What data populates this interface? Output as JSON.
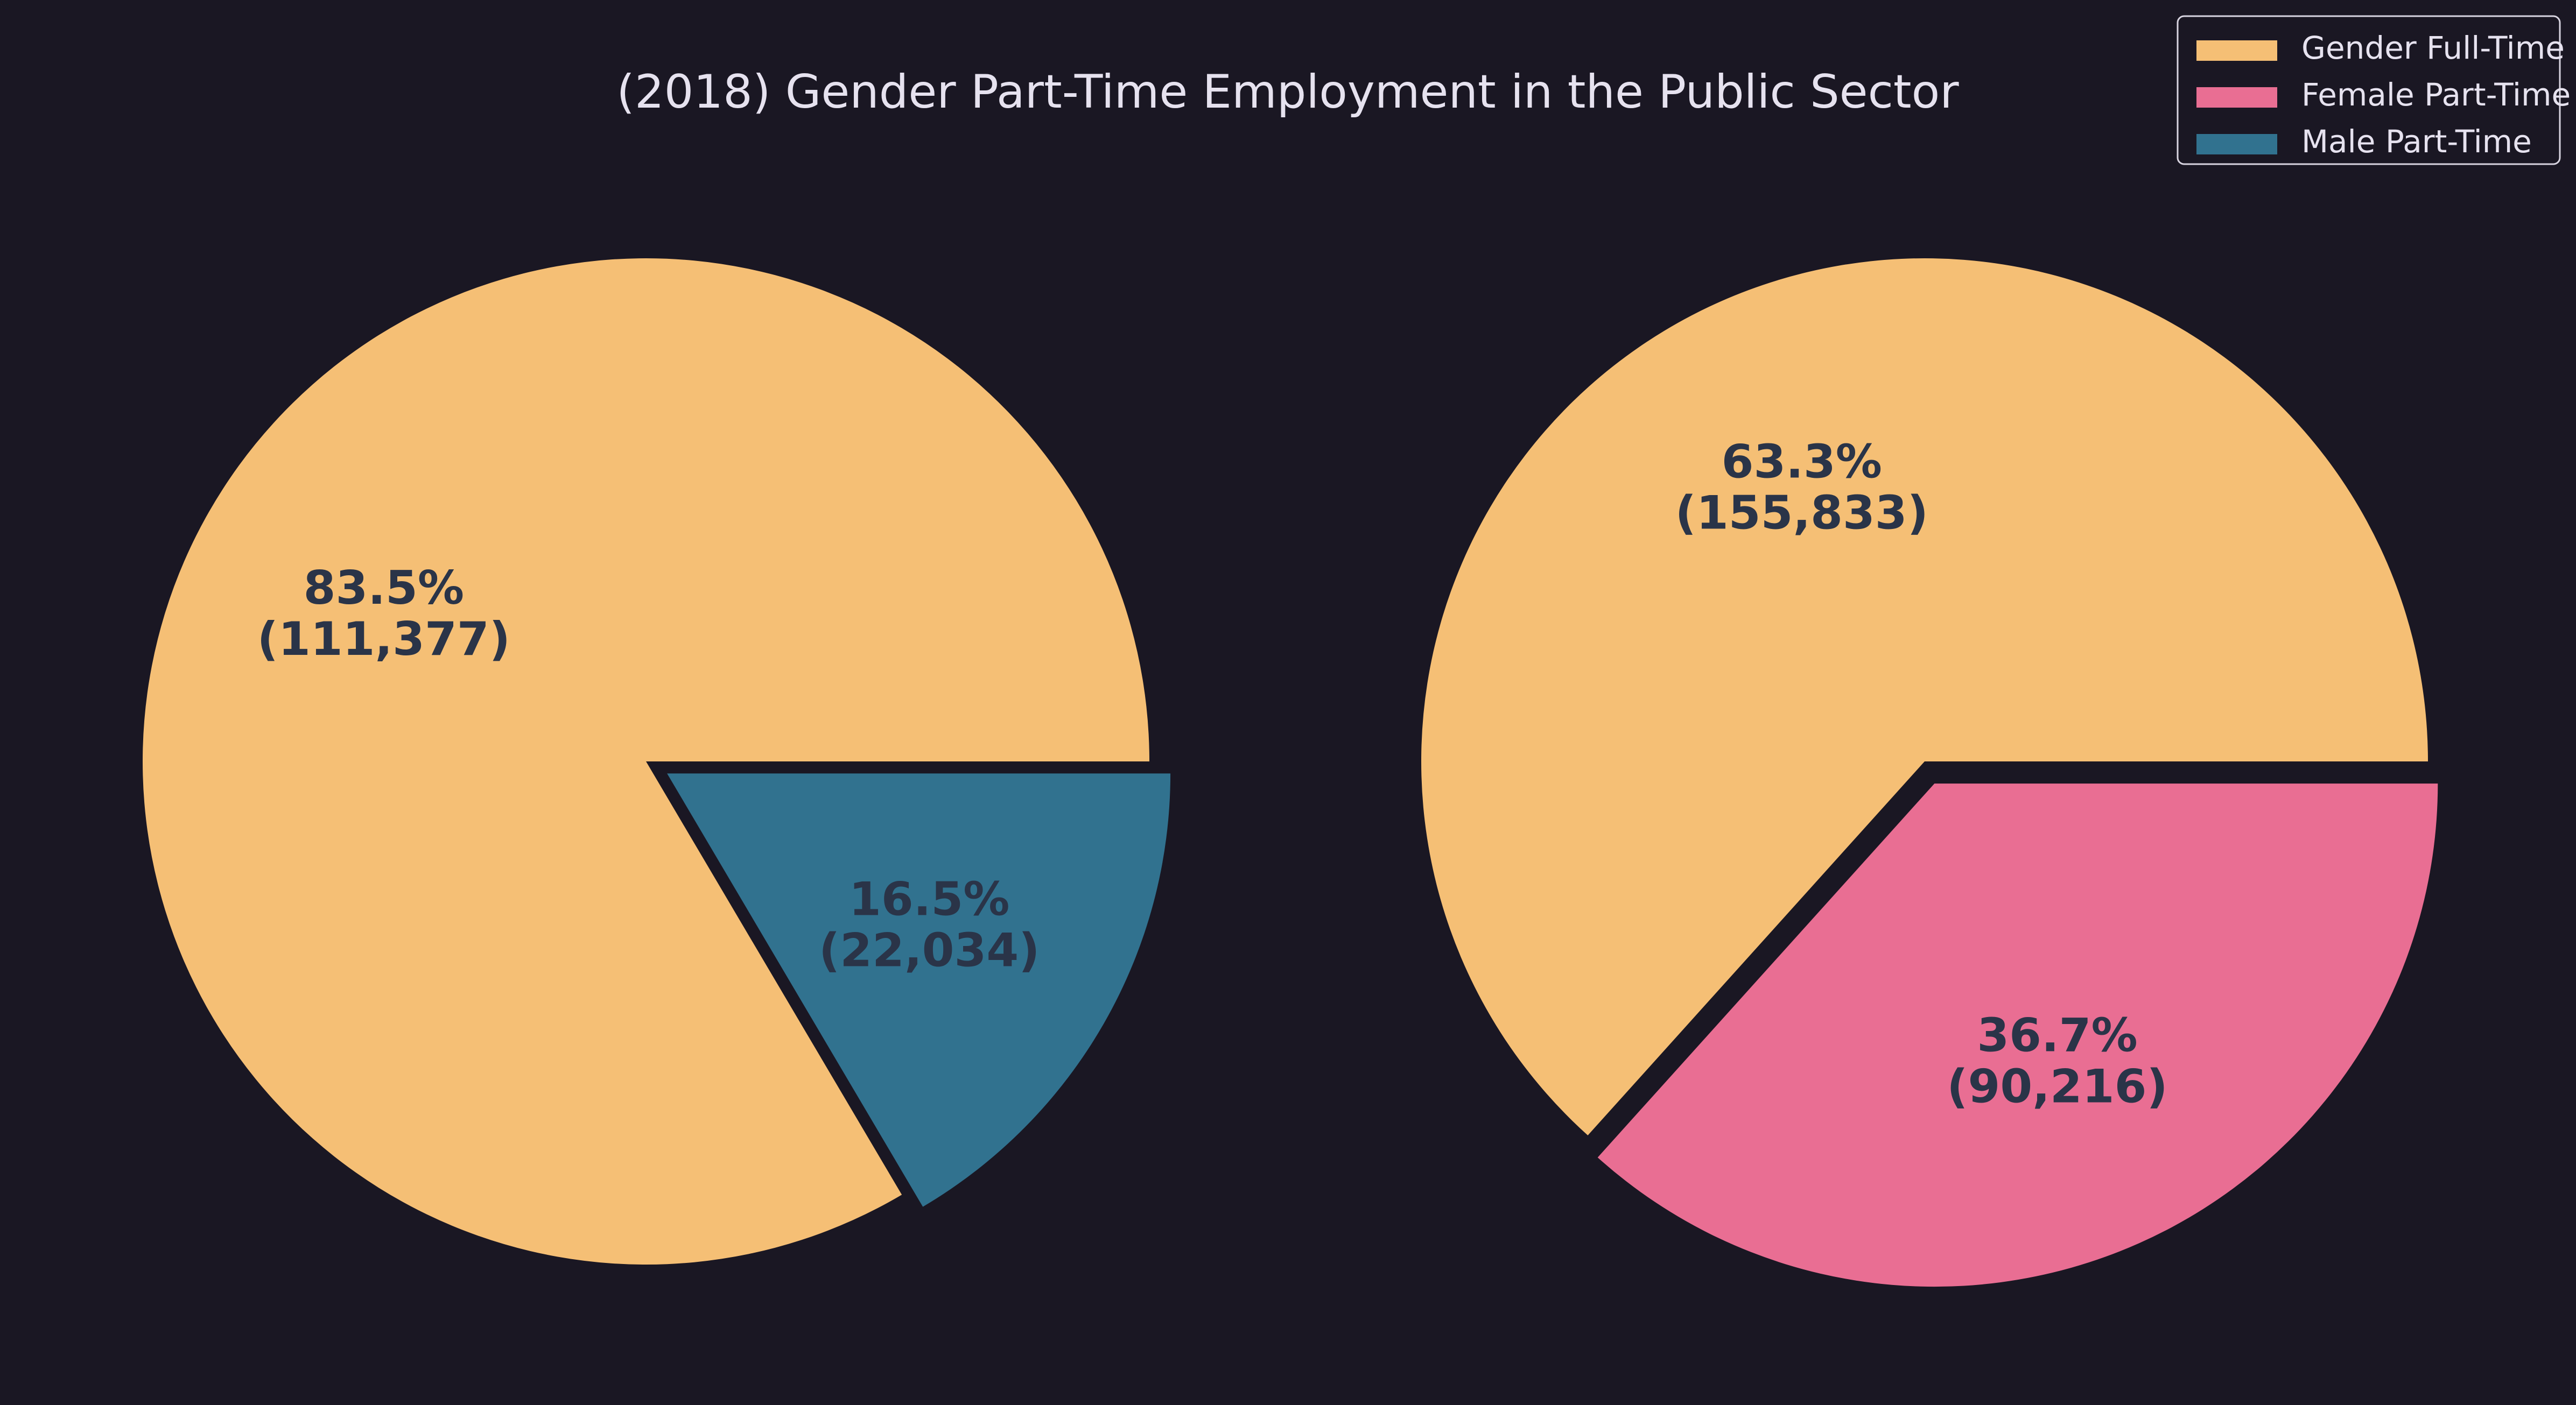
{
  "chart_data": {
    "type": "pie",
    "title": "(2018) Gender Part-Time Employment in the Public Sector",
    "legend": {
      "placement": "top-right",
      "entries": [
        {
          "label": "Gender Full-Time",
          "color": "#f5bf75"
        },
        {
          "label": "Female Part-Time",
          "color": "#e96e93"
        },
        {
          "label": "Male Part-Time",
          "color": "#31728f"
        }
      ]
    },
    "pies": [
      {
        "slices": [
          {
            "name": "Gender Full-Time",
            "value": 111377,
            "percent_label": "83.5%",
            "value_label": "(111,377)",
            "color": "#f5bf75",
            "exploded": false
          },
          {
            "name": "Male Part-Time",
            "value": 22034,
            "percent_label": "16.5%",
            "value_label": "(22,034)",
            "color": "#31728f",
            "exploded": true
          }
        ]
      },
      {
        "slices": [
          {
            "name": "Gender Full-Time",
            "value": 155833,
            "percent_label": "63.3%",
            "value_label": "(155,833)",
            "color": "#f5bf75",
            "exploded": false
          },
          {
            "name": "Female Part-Time",
            "value": 90216,
            "percent_label": "36.7%",
            "value_label": "(90,216)",
            "color": "#e96e93",
            "exploded": true
          }
        ]
      }
    ]
  }
}
